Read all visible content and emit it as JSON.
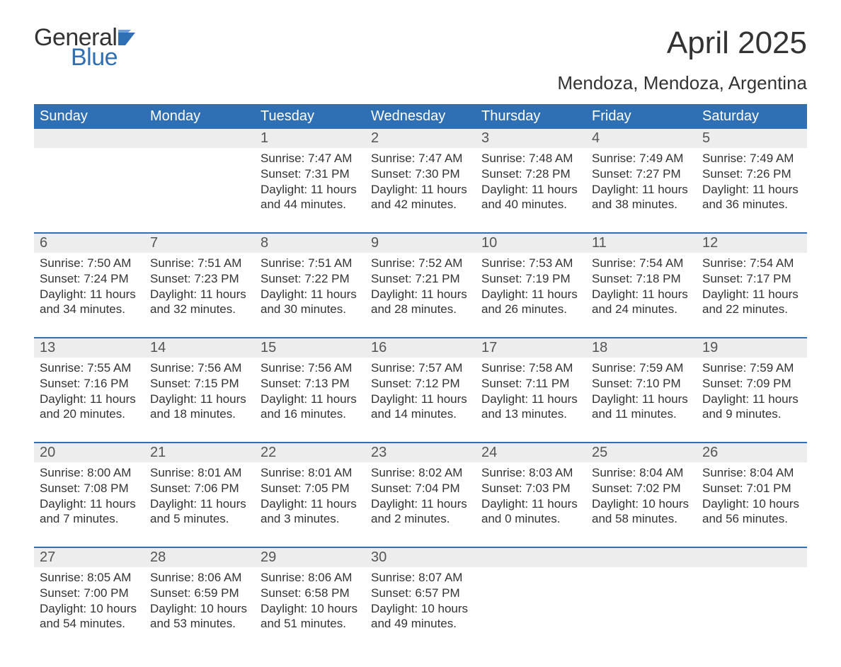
{
  "logo": {
    "general": "General",
    "blue": "Blue"
  },
  "title": "April 2025",
  "subtitle": "Mendoza, Mendoza, Argentina",
  "colors": {
    "header_bg": "#2f6fb3",
    "header_text": "#ffffff",
    "daynum_bg": "#ededed",
    "body_text": "#333333",
    "page_bg": "#ffffff"
  },
  "day_headers": [
    "Sunday",
    "Monday",
    "Tuesday",
    "Wednesday",
    "Thursday",
    "Friday",
    "Saturday"
  ],
  "weeks": [
    [
      null,
      null,
      {
        "n": "1",
        "sr": "7:47 AM",
        "ss": "7:31 PM",
        "dl": "11 hours and 44 minutes."
      },
      {
        "n": "2",
        "sr": "7:47 AM",
        "ss": "7:30 PM",
        "dl": "11 hours and 42 minutes."
      },
      {
        "n": "3",
        "sr": "7:48 AM",
        "ss": "7:28 PM",
        "dl": "11 hours and 40 minutes."
      },
      {
        "n": "4",
        "sr": "7:49 AM",
        "ss": "7:27 PM",
        "dl": "11 hours and 38 minutes."
      },
      {
        "n": "5",
        "sr": "7:49 AM",
        "ss": "7:26 PM",
        "dl": "11 hours and 36 minutes."
      }
    ],
    [
      {
        "n": "6",
        "sr": "7:50 AM",
        "ss": "7:24 PM",
        "dl": "11 hours and 34 minutes."
      },
      {
        "n": "7",
        "sr": "7:51 AM",
        "ss": "7:23 PM",
        "dl": "11 hours and 32 minutes."
      },
      {
        "n": "8",
        "sr": "7:51 AM",
        "ss": "7:22 PM",
        "dl": "11 hours and 30 minutes."
      },
      {
        "n": "9",
        "sr": "7:52 AM",
        "ss": "7:21 PM",
        "dl": "11 hours and 28 minutes."
      },
      {
        "n": "10",
        "sr": "7:53 AM",
        "ss": "7:19 PM",
        "dl": "11 hours and 26 minutes."
      },
      {
        "n": "11",
        "sr": "7:54 AM",
        "ss": "7:18 PM",
        "dl": "11 hours and 24 minutes."
      },
      {
        "n": "12",
        "sr": "7:54 AM",
        "ss": "7:17 PM",
        "dl": "11 hours and 22 minutes."
      }
    ],
    [
      {
        "n": "13",
        "sr": "7:55 AM",
        "ss": "7:16 PM",
        "dl": "11 hours and 20 minutes."
      },
      {
        "n": "14",
        "sr": "7:56 AM",
        "ss": "7:15 PM",
        "dl": "11 hours and 18 minutes."
      },
      {
        "n": "15",
        "sr": "7:56 AM",
        "ss": "7:13 PM",
        "dl": "11 hours and 16 minutes."
      },
      {
        "n": "16",
        "sr": "7:57 AM",
        "ss": "7:12 PM",
        "dl": "11 hours and 14 minutes."
      },
      {
        "n": "17",
        "sr": "7:58 AM",
        "ss": "7:11 PM",
        "dl": "11 hours and 13 minutes."
      },
      {
        "n": "18",
        "sr": "7:59 AM",
        "ss": "7:10 PM",
        "dl": "11 hours and 11 minutes."
      },
      {
        "n": "19",
        "sr": "7:59 AM",
        "ss": "7:09 PM",
        "dl": "11 hours and 9 minutes."
      }
    ],
    [
      {
        "n": "20",
        "sr": "8:00 AM",
        "ss": "7:08 PM",
        "dl": "11 hours and 7 minutes."
      },
      {
        "n": "21",
        "sr": "8:01 AM",
        "ss": "7:06 PM",
        "dl": "11 hours and 5 minutes."
      },
      {
        "n": "22",
        "sr": "8:01 AM",
        "ss": "7:05 PM",
        "dl": "11 hours and 3 minutes."
      },
      {
        "n": "23",
        "sr": "8:02 AM",
        "ss": "7:04 PM",
        "dl": "11 hours and 2 minutes."
      },
      {
        "n": "24",
        "sr": "8:03 AM",
        "ss": "7:03 PM",
        "dl": "11 hours and 0 minutes."
      },
      {
        "n": "25",
        "sr": "8:04 AM",
        "ss": "7:02 PM",
        "dl": "10 hours and 58 minutes."
      },
      {
        "n": "26",
        "sr": "8:04 AM",
        "ss": "7:01 PM",
        "dl": "10 hours and 56 minutes."
      }
    ],
    [
      {
        "n": "27",
        "sr": "8:05 AM",
        "ss": "7:00 PM",
        "dl": "10 hours and 54 minutes."
      },
      {
        "n": "28",
        "sr": "8:06 AM",
        "ss": "6:59 PM",
        "dl": "10 hours and 53 minutes."
      },
      {
        "n": "29",
        "sr": "8:06 AM",
        "ss": "6:58 PM",
        "dl": "10 hours and 51 minutes."
      },
      {
        "n": "30",
        "sr": "8:07 AM",
        "ss": "6:57 PM",
        "dl": "10 hours and 49 minutes."
      },
      null,
      null,
      null
    ]
  ],
  "labels": {
    "sunrise": "Sunrise: ",
    "sunset": "Sunset: ",
    "daylight": "Daylight: "
  }
}
